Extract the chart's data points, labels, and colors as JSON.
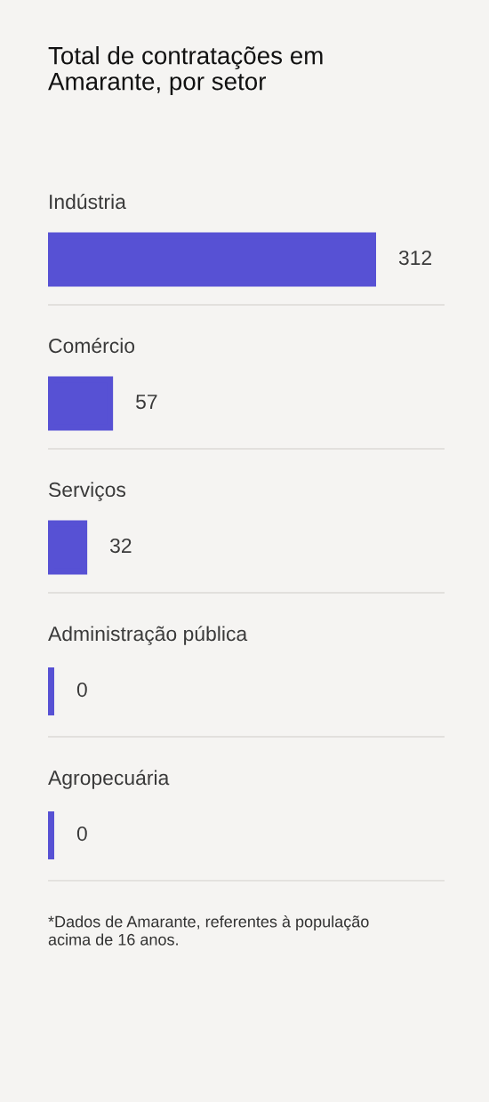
{
  "chart_data": {
    "type": "bar",
    "orientation": "horizontal",
    "title": "Total de contratações em\nAmarante, por setor",
    "categories": [
      "Indústria",
      "Comércio",
      "Serviços",
      "Administração pública",
      "Agropecuária"
    ],
    "values": [
      312,
      57,
      32,
      0,
      0
    ],
    "color": "#5751d4",
    "data_labels": true,
    "annotations": [
      "*Dados de Amarante, referentes à população\nacima de 16 anos."
    ]
  }
}
